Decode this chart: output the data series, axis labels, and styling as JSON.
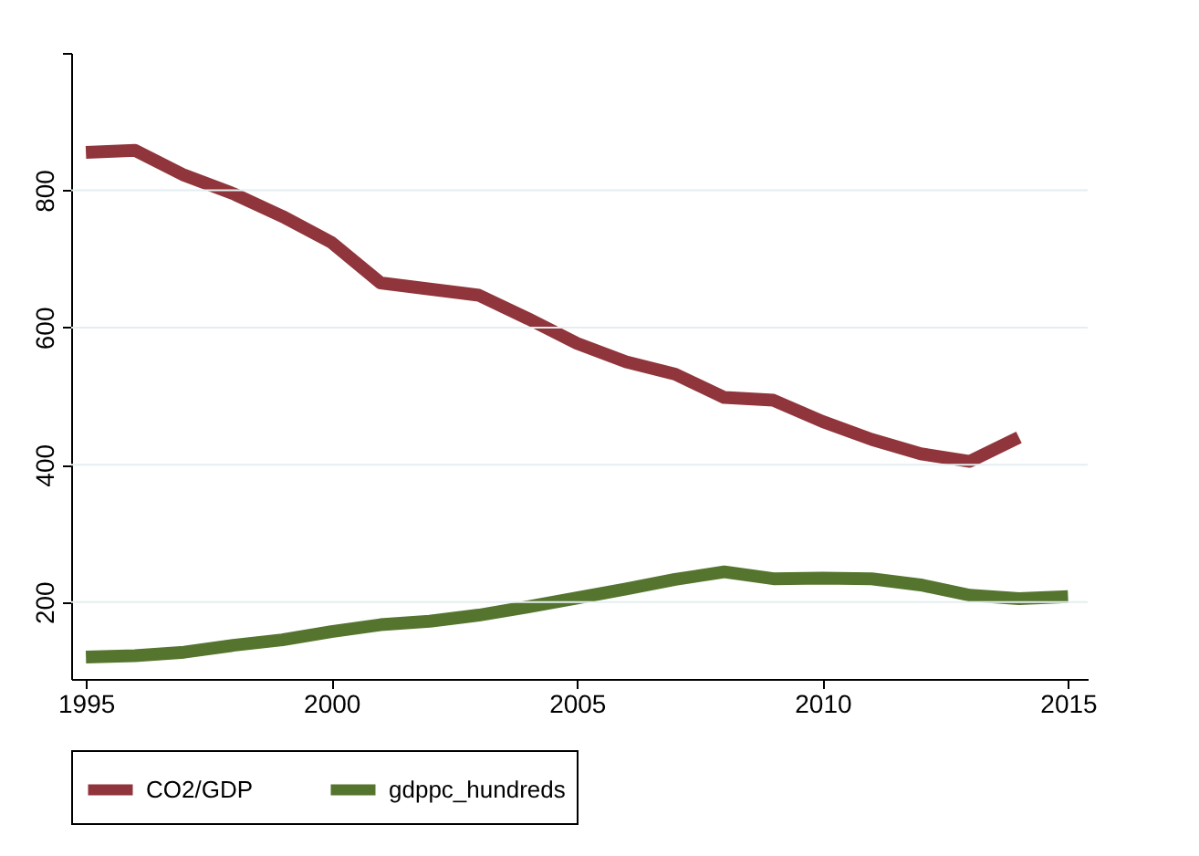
{
  "chart_data": {
    "type": "line",
    "x": [
      1995,
      1996,
      1997,
      1998,
      1999,
      2000,
      2001,
      2002,
      2003,
      2004,
      2005,
      2006,
      2007,
      2008,
      2009,
      2010,
      2011,
      2012,
      2013,
      2014,
      2015
    ],
    "series": [
      {
        "name": "CO2/GDP",
        "color": "#90353b",
        "values": [
          855,
          858,
          822,
          795,
          762,
          724,
          665,
          656,
          647,
          613,
          577,
          550,
          532,
          498,
          494,
          463,
          437,
          416,
          405,
          440,
          null
        ]
      },
      {
        "name": "gdppc_hundreds",
        "color": "#55752f",
        "values": [
          120,
          122,
          127,
          137,
          145,
          157,
          167,
          172,
          181,
          193,
          206,
          219,
          233,
          244,
          234,
          235,
          234,
          225,
          210,
          205,
          208
        ]
      }
    ],
    "xlim": [
      1994.7,
      2015.4
    ],
    "xticks": [
      1995,
      2000,
      2005,
      2010,
      2015
    ],
    "ylim": [
      88,
      1000
    ],
    "yticks": [
      200,
      400,
      600,
      800,
      {
        "value": 1000,
        "label": null
      }
    ],
    "grid": "y",
    "legend": "bottom",
    "marker": "none",
    "line_style": "solid"
  }
}
